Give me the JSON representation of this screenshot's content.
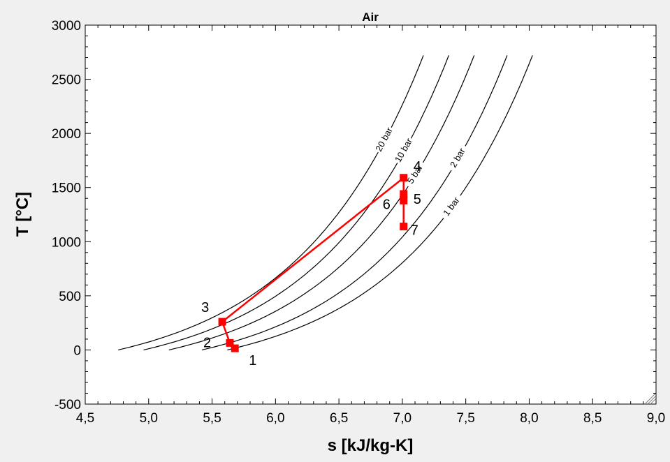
{
  "chart_data": {
    "type": "scatter",
    "title": "Air",
    "xlabel": "s [kJ/kg-K]",
    "ylabel": "T [°C]",
    "xlim": [
      4.5,
      9.0
    ],
    "ylim": [
      -500,
      3000
    ],
    "xticks": [
      "4,5",
      "5,0",
      "5,5",
      "6,0",
      "6,5",
      "7,0",
      "7,5",
      "8,0",
      "8,5",
      "9,0"
    ],
    "yticks": [
      "3000",
      "2500",
      "2000",
      "1500",
      "1000",
      "500",
      "0",
      "-500"
    ],
    "grid": false,
    "isobars": [
      {
        "name": "20 bar",
        "s0": 4.76
      },
      {
        "name": "10 bar",
        "s0": 4.96
      },
      {
        "name": "5 bar",
        "s0": 5.16
      },
      {
        "name": "2 bar",
        "s0": 5.42
      },
      {
        "name": "1 bar",
        "s0": 5.62
      }
    ],
    "iso_color": "#000000",
    "cycle_color": "#ff0000",
    "cycle_points": [
      {
        "label": "1",
        "s": 5.68,
        "T": 15
      },
      {
        "label": "2",
        "s": 5.64,
        "T": 65
      },
      {
        "label": "3",
        "s": 5.58,
        "T": 260
      },
      {
        "label": "4",
        "s": 7.01,
        "T": 1590
      },
      {
        "label": "5",
        "s": 7.01,
        "T": 1440
      },
      {
        "label": "6",
        "s": 7.01,
        "T": 1380
      },
      {
        "label": "7",
        "s": 7.01,
        "T": 1140
      }
    ]
  }
}
